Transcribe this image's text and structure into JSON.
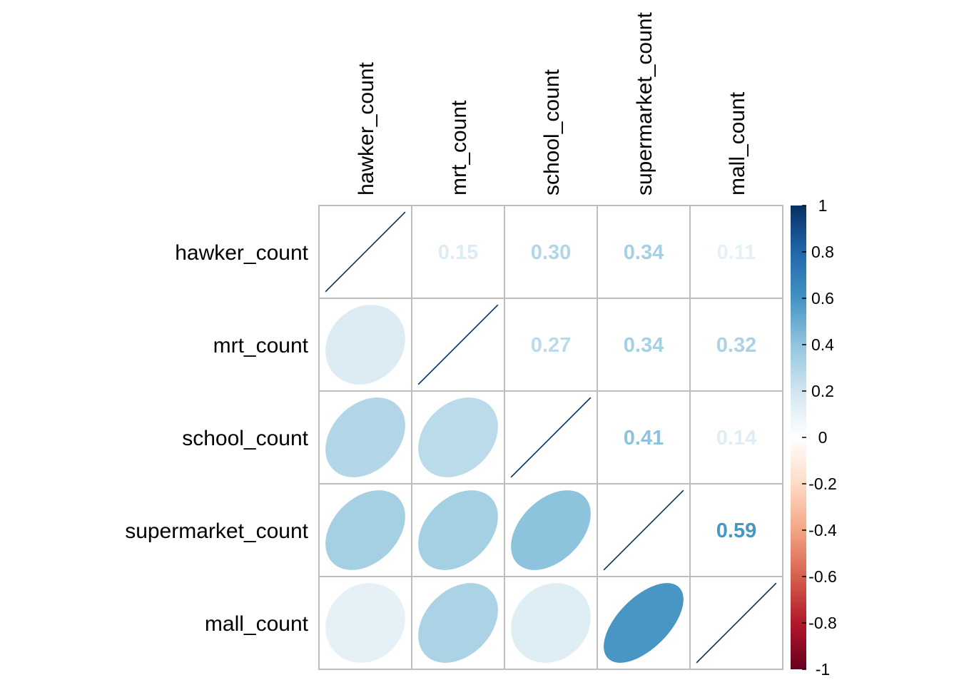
{
  "chart_data": {
    "type": "heatmap",
    "variables": [
      "hawker_count",
      "mrt_count",
      "school_count",
      "supermarket_count",
      "mall_count"
    ],
    "matrix": [
      [
        1.0,
        0.15,
        0.3,
        0.34,
        0.11
      ],
      [
        0.15,
        1.0,
        0.27,
        0.34,
        0.32
      ],
      [
        0.3,
        0.27,
        1.0,
        0.41,
        0.14
      ],
      [
        0.34,
        0.34,
        0.41,
        1.0,
        0.59
      ],
      [
        0.11,
        0.32,
        0.14,
        0.59,
        1.0
      ]
    ],
    "upper_triangle": "numbers",
    "lower_triangle": "ellipses",
    "diagonal": "ellipses",
    "colorbar": {
      "range": [
        -1,
        1
      ],
      "ticks": [
        "1",
        "0.8",
        "0.6",
        "0.4",
        "0.2",
        "0",
        "-0.2",
        "-0.4",
        "-0.6",
        "-0.8",
        "-1"
      ],
      "tick_values": [
        1,
        0.8,
        0.6,
        0.4,
        0.2,
        0,
        -0.2,
        -0.4,
        -0.6,
        -0.8,
        -1
      ],
      "placement": "right"
    },
    "palette": [
      "#67001F",
      "#B2182B",
      "#D6604D",
      "#F4A582",
      "#FDDBC7",
      "#FFFFFF",
      "#D1E5F0",
      "#92C5DE",
      "#4393C3",
      "#2166AC",
      "#053061"
    ],
    "grid": true,
    "grid_color": "#BEBEBE"
  }
}
